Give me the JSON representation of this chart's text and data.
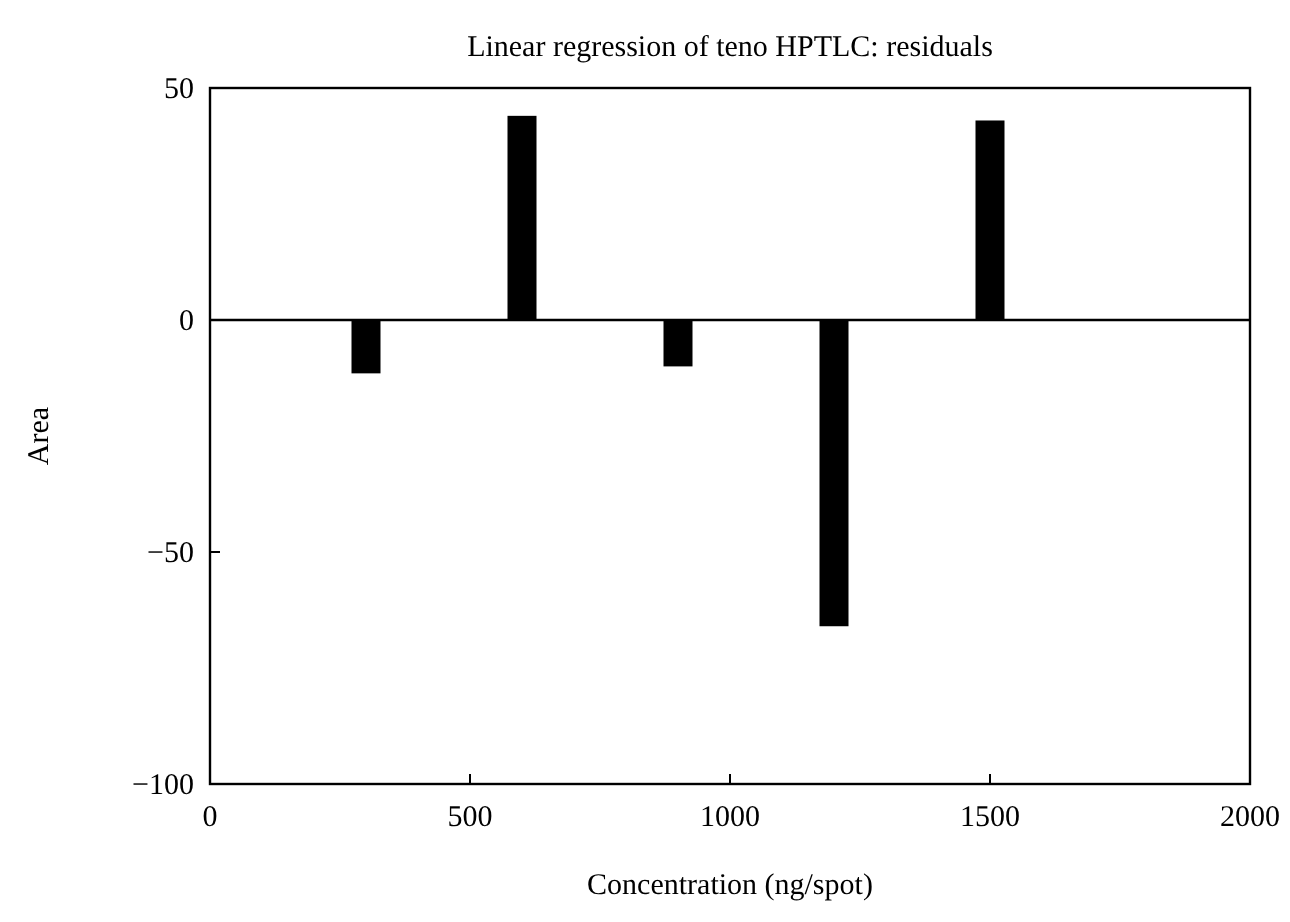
{
  "chart_data": {
    "type": "bar",
    "title": "Linear regression of teno HPTLC: residuals",
    "xlabel": "Concentration (ng/spot)",
    "ylabel": "Area",
    "x": [
      300,
      600,
      900,
      1200,
      1500
    ],
    "values": [
      -11.5,
      44,
      -10,
      -66,
      43
    ],
    "color": "#000000",
    "xlim": [
      0,
      2000
    ],
    "xticks": [
      0,
      500,
      1000,
      1500,
      2000
    ],
    "ylim": [
      -100,
      50
    ],
    "yticks": [
      {
        "value": -100,
        "label": "−100"
      },
      {
        "value": -50,
        "label": "−50"
      },
      0,
      50
    ],
    "ref_lines": [
      {
        "axis": "y",
        "value": 0,
        "color": "#000000"
      }
    ],
    "grid": false
  }
}
